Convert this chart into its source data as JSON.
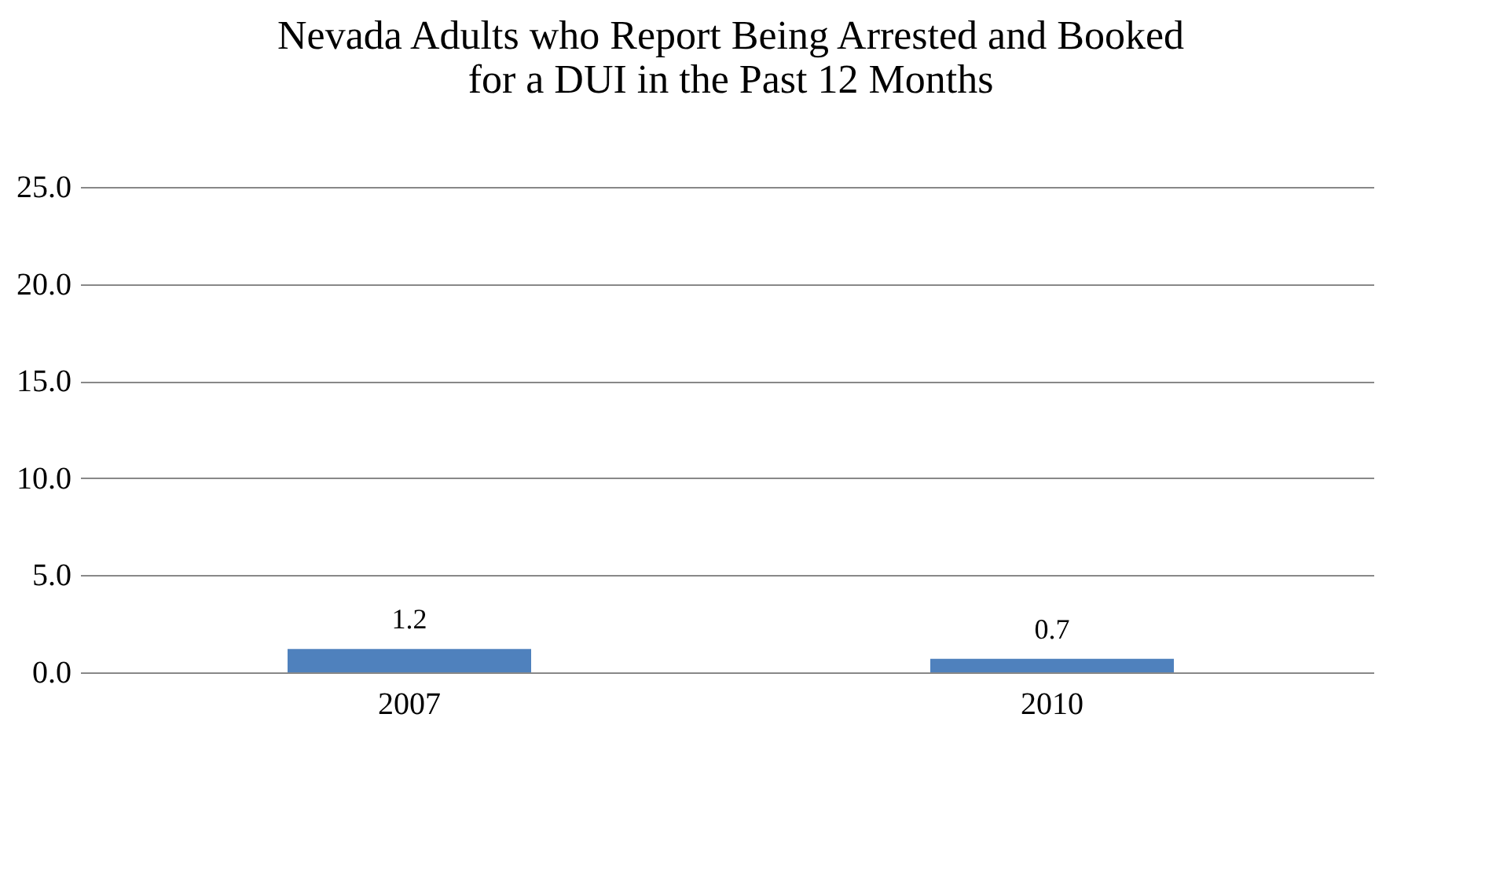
{
  "chart_data": {
    "type": "bar",
    "title": [
      "Nevada Adults who Report Being Arrested and Booked",
      "for a DUI in the Past 12 Months"
    ],
    "categories": [
      "2007",
      "2010"
    ],
    "values": [
      1.2,
      0.7
    ],
    "color": "#4f81bd",
    "ylim": [
      0,
      25
    ],
    "yticks": [
      {
        "value": 0,
        "label": "0.0"
      },
      {
        "value": 5,
        "label": "5.0"
      },
      {
        "value": 10,
        "label": "10.0"
      },
      {
        "value": 15,
        "label": "15.0"
      },
      {
        "value": 20,
        "label": "20.0"
      },
      {
        "value": 25,
        "label": "25.0"
      }
    ],
    "grid": "y",
    "data_labels": true
  }
}
